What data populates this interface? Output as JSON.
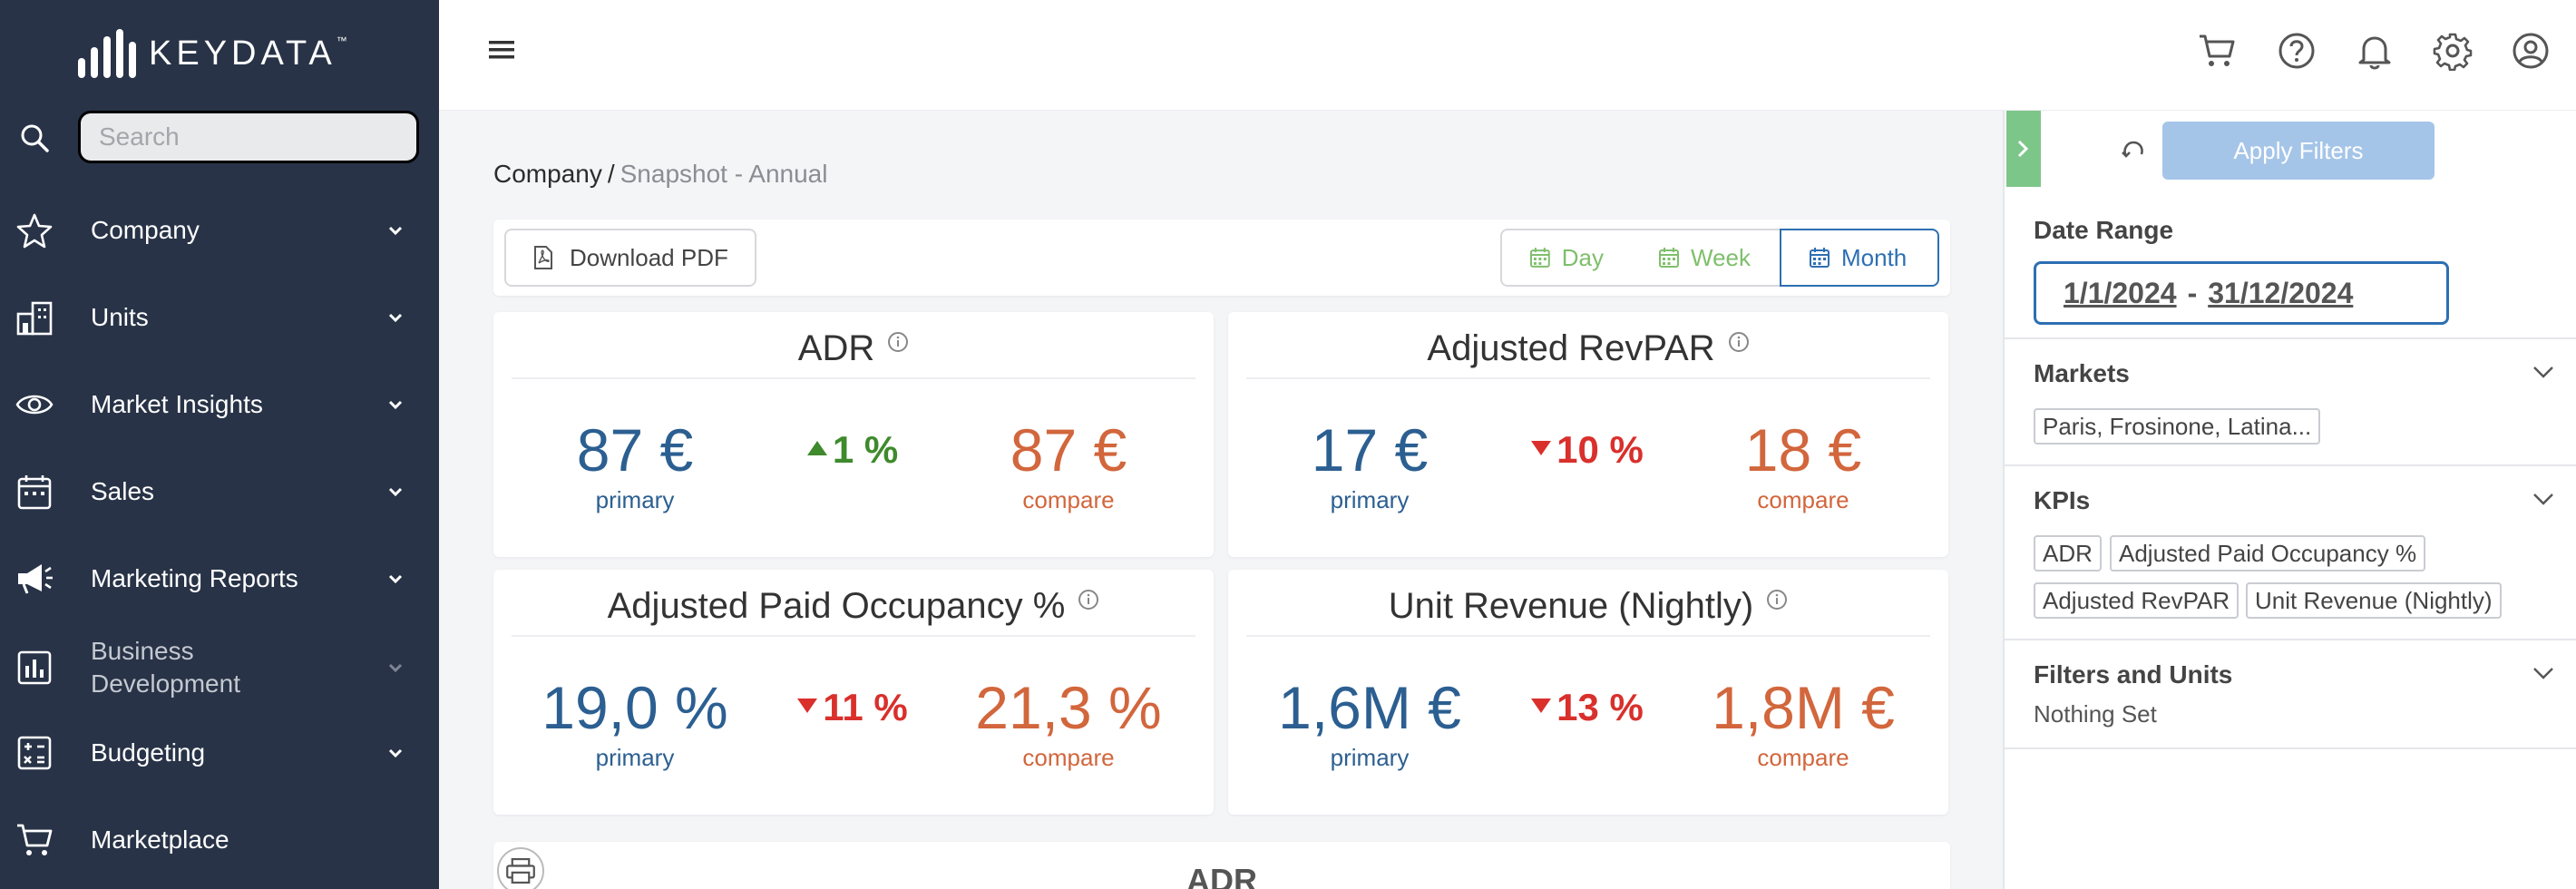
{
  "brand": {
    "name": "KEYDATA",
    "tm": "™"
  },
  "search": {
    "placeholder": "Search",
    "value": ""
  },
  "nav": [
    {
      "label": "Company",
      "icon": "star-icon"
    },
    {
      "label": "Units",
      "icon": "building-icon"
    },
    {
      "label": "Market Insights",
      "icon": "eye-icon"
    },
    {
      "label": "Sales",
      "icon": "calendar-icon"
    },
    {
      "label": "Marketing Reports",
      "icon": "megaphone-icon"
    },
    {
      "label": "Business Development",
      "icon": "bar-chart-icon"
    },
    {
      "label": "Budgeting",
      "icon": "calculator-icon"
    },
    {
      "label": "Marketplace",
      "icon": "cart-icon"
    }
  ],
  "breadcrumb": {
    "parent": "Company",
    "separator": "/",
    "current": "Snapshot - Annual"
  },
  "toolbar": {
    "download_label": "Download PDF",
    "day_label": "Day",
    "week_label": "Week",
    "month_label": "Month",
    "active": "Month"
  },
  "kpis": [
    {
      "title": "ADR",
      "primary": "87 €",
      "change": "1 %",
      "direction": "up",
      "compare": "87 €",
      "primary_label": "primary",
      "compare_label": "compare"
    },
    {
      "title": "Adjusted RevPAR",
      "primary": "17 €",
      "change": "10 %",
      "direction": "down",
      "compare": "18 €",
      "primary_label": "primary",
      "compare_label": "compare"
    },
    {
      "title": "Adjusted Paid Occupancy %",
      "primary": "19,0 %",
      "change": "11 %",
      "direction": "down",
      "compare": "21,3 %",
      "primary_label": "primary",
      "compare_label": "compare"
    },
    {
      "title": "Unit Revenue (Nightly)",
      "primary": "1,6M €",
      "change": "13 %",
      "direction": "down",
      "compare": "1,8M €",
      "primary_label": "primary",
      "compare_label": "compare"
    }
  ],
  "chart_section": {
    "title": "ADR"
  },
  "filters": {
    "apply_label": "Apply Filters",
    "date_range": {
      "title": "Date Range",
      "start": "1/1/2024",
      "separator": "-",
      "end": "31/12/2024"
    },
    "markets": {
      "title": "Markets",
      "tags": [
        "Paris, Frosinone, Latina..."
      ]
    },
    "kpis": {
      "title": "KPIs",
      "tags": [
        "ADR",
        "Adjusted Paid Occupancy %",
        "Adjusted RevPAR",
        "Unit Revenue (Nightly)"
      ]
    },
    "filters_units": {
      "title": "Filters and Units",
      "value": "Nothing Set"
    }
  },
  "colors": {
    "sidebar": "#283347",
    "primary": "#2c5f91",
    "compare": "#d2663c",
    "up": "#3e8a2c",
    "down": "#d9302c",
    "accent": "#2d6fb3",
    "green": "#7fbf6c"
  }
}
